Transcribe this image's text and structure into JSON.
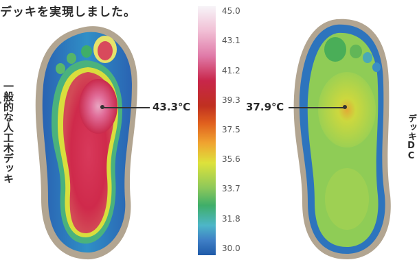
{
  "heading": "デッキを実現しました。",
  "left_caption": "一般的な人工木デッキ",
  "right_caption": "デッキDC",
  "scale_ticks": [
    "45.0",
    "43.1",
    "41.2",
    "39.3",
    "37.5",
    "35.6",
    "33.7",
    "31.8",
    "30.0"
  ],
  "left_temp": "43.3℃",
  "right_temp": "37.9℃",
  "colors": {
    "hot": "#c8264a",
    "warm": "#e07aa8",
    "mid": "#dde23b",
    "cool": "#3fae69",
    "cold": "#1f5aa8",
    "border": "#b2a591"
  }
}
